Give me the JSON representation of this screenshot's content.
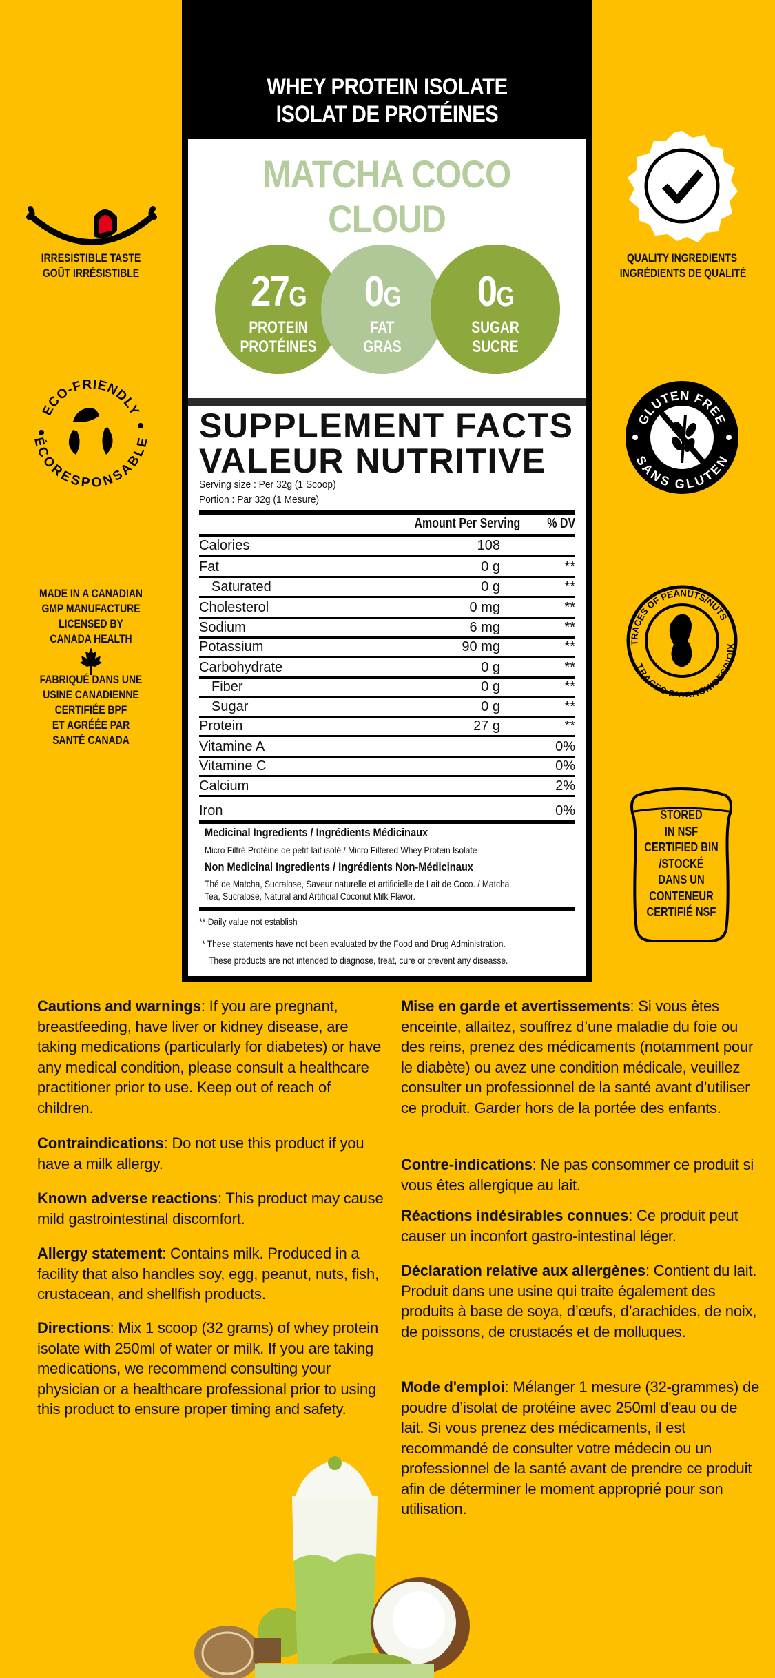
{
  "colors": {
    "background": "#FEBF00",
    "flavor": "#B5CC9C",
    "circle_dark": "#8DA83C",
    "circle_light": "#B0C898"
  },
  "header": {
    "line1": "WHEY PROTEIN ISOLATE",
    "line2": "ISOLAT DE PROTÉINES"
  },
  "flavor": "MATCHA COCO CLOUD",
  "highlights": [
    {
      "value": "27",
      "unit": "G",
      "label_en": "PROTEIN",
      "label_fr": "PROTÉINES"
    },
    {
      "value": "0",
      "unit": "G",
      "label_en": "FAT",
      "label_fr": "GRAS"
    },
    {
      "value": "0",
      "unit": "G",
      "label_en": "SUGAR",
      "label_fr": "SUCRE"
    }
  ],
  "left_badges": {
    "taste": {
      "icon": "tongue-smile-icon",
      "line1": "IRRESISTIBLE TASTE",
      "line2": "GOÛT IRRÉSISTIBLE"
    },
    "eco": {
      "icon": "leaves-recycle-icon",
      "top": "ECO-FRIENDLY",
      "bottom": "ÉCORESPONSABLE"
    },
    "made_in": {
      "icon": "maple-leaf-icon",
      "en": [
        "MADE IN A CANADIAN",
        "GMP MANUFACTURE",
        "LICENSED BY",
        "CANADA HEALTH"
      ],
      "fr": [
        "FABRIQUÉ DANS UNE",
        "USINE CANADIENNE",
        "CERTIFIÉE BPF",
        "ET AGRÉÉE PAR",
        "SANTÉ CANADA"
      ]
    }
  },
  "right_badges": {
    "quality": {
      "icon": "checkmark-seal-icon",
      "line1": "QUALITY INGREDIENTS",
      "line2": "INGRÉDIENTS DE QUALITÉ"
    },
    "gluten": {
      "icon": "no-wheat-icon",
      "top": "GLUTEN FREE",
      "bottom": "SANS GLUTEN"
    },
    "peanut": {
      "icon": "peanut-icon",
      "top": "TRACES OF PEANUTS/NUTS",
      "bottom": "TRACES D'ARACHIDES/NOIX"
    },
    "nsf": {
      "icon": "storage-bin-icon",
      "lines": [
        "STORED",
        "IN NSF",
        "CERTIFIED BIN",
        "/STOCKÉ",
        "DANS UN",
        "CONTENEUR",
        "CERTIFIÉ NSF"
      ]
    }
  },
  "facts": {
    "title_en": "SUPPLEMENT FACTS",
    "title_fr": "VALEUR NUTRITIVE",
    "serving_en": "Serving size : Per 32g (1 Scoop)",
    "serving_fr": "Portion : Par 32g (1 Mesure)",
    "col_amount": "Amount Per Serving",
    "col_dv": "% DV",
    "rows": [
      {
        "name": "Calories",
        "amount": "108",
        "dv": ""
      },
      {
        "name": "Fat",
        "amount": "0 g",
        "dv": "**"
      },
      {
        "name": "Saturated",
        "amount": "0 g",
        "dv": "**"
      },
      {
        "name": "Cholesterol",
        "amount": "0 mg",
        "dv": "**"
      },
      {
        "name": "Sodium",
        "amount": "6 mg",
        "dv": "**"
      },
      {
        "name": "Potassium",
        "amount": "90 mg",
        "dv": "**"
      },
      {
        "name": "Carbohydrate",
        "amount": "0 g",
        "dv": "**"
      },
      {
        "name": "Fiber",
        "amount": "0 g",
        "dv": "**"
      },
      {
        "name": "Sugar",
        "amount": "0 g",
        "dv": "**"
      },
      {
        "name": "Protein",
        "amount": "27 g",
        "dv": "**"
      },
      {
        "name": "Vitamine A",
        "amount": "",
        "dv": "0%"
      },
      {
        "name": "Vitamine C",
        "amount": "",
        "dv": "0%"
      },
      {
        "name": "Calcium",
        "amount": "",
        "dv": "2%"
      },
      {
        "name": "Iron",
        "amount": "",
        "dv": "0%"
      }
    ],
    "medicinal_title": "Medicinal Ingredients / Ingrédients Médicinaux",
    "medicinal_text": "Micro Filtré Protéine de petit-lait isolé / Micro Filtered Whey Protein Isolate",
    "non_medicinal_title": "Non Medicinal Ingredients / Ingrédients Non-Médicinaux",
    "non_medicinal_line1": "Thé de Matcha, Sucralose,  Saveur naturelle et artificielle de Lait de Coco. / Matcha",
    "non_medicinal_line2": "Tea, Sucralose, Natural and Artificial Coconut Milk Flavor.",
    "footnote_dv": "** Daily value not establish",
    "disclaimer1": "* These statements have not been evaluated by the Food and Drug Administration.",
    "disclaimer2": "These products are not intended to diagnose, treat, cure or prevent any diseasse."
  },
  "warnings_en": [
    {
      "title": "Cautions and warnings",
      "text": ": If you are pregnant, breastfeeding, have liver or kidney disease, are taking medications (particularly for diabetes) or have any medical condition, please consult a healthcare practitioner prior to use. Keep out of reach of children."
    },
    {
      "title": "Contraindications",
      "text": ": Do not use this product if you have a milk allergy."
    },
    {
      "title": "Known adverse reactions",
      "text": ": This product may cause mild gastrointestinal discomfort."
    },
    {
      "title": "Allergy statement",
      "text": ": Contains milk. Produced in a facility that also handles soy, egg, peanut, nuts, fish, crustacean, and shellfish products."
    },
    {
      "title": "Directions",
      "text": ": Mix 1 scoop (32 grams) of whey protein isolate with 250ml of water or milk. If you are taking medications, we recommend consulting your physician or a healthcare professional prior to using this product to ensure proper timing and safety."
    }
  ],
  "warnings_fr": [
    {
      "title": "Mise en garde et avertissements",
      "text": ": Si vous êtes enceinte, allaitez, souffrez d’une maladie du foie ou des reins, prenez des médicaments (notamment pour le diabète) ou avez une condition médicale, veuillez consulter un professionnel de la santé avant d’utiliser ce produit. Garder hors de la portée des enfants."
    },
    {
      "title": "Contre-indications",
      "text": ": Ne pas consommer ce produit si vous êtes allergique au lait."
    },
    {
      "title": "Réactions indésirables connues",
      "text": ": Ce produit peut causer un inconfort gastro-intestinal léger."
    },
    {
      "title": "Déclaration relative aux allergènes",
      "text": ": Contient du lait. Produit dans une usine qui traite également des produits à base de soya, d’œufs, d’arachides, de noix, de poissons, de crustacés et de molluques."
    },
    {
      "title": "Mode d'emploi",
      "text": ": Mélanger 1 mesure (32-grammes) de poudre d’isolat de protéine avec 250ml d'eau ou de lait. Si vous prenez des médicaments, il est recommandé de consulter votre médecin ou un professionnel de la santé avant de prendre ce produit afin de déterminer le moment approprié pour son utilisation."
    }
  ],
  "product_image": {
    "icon": "matcha-drink-illustration"
  }
}
